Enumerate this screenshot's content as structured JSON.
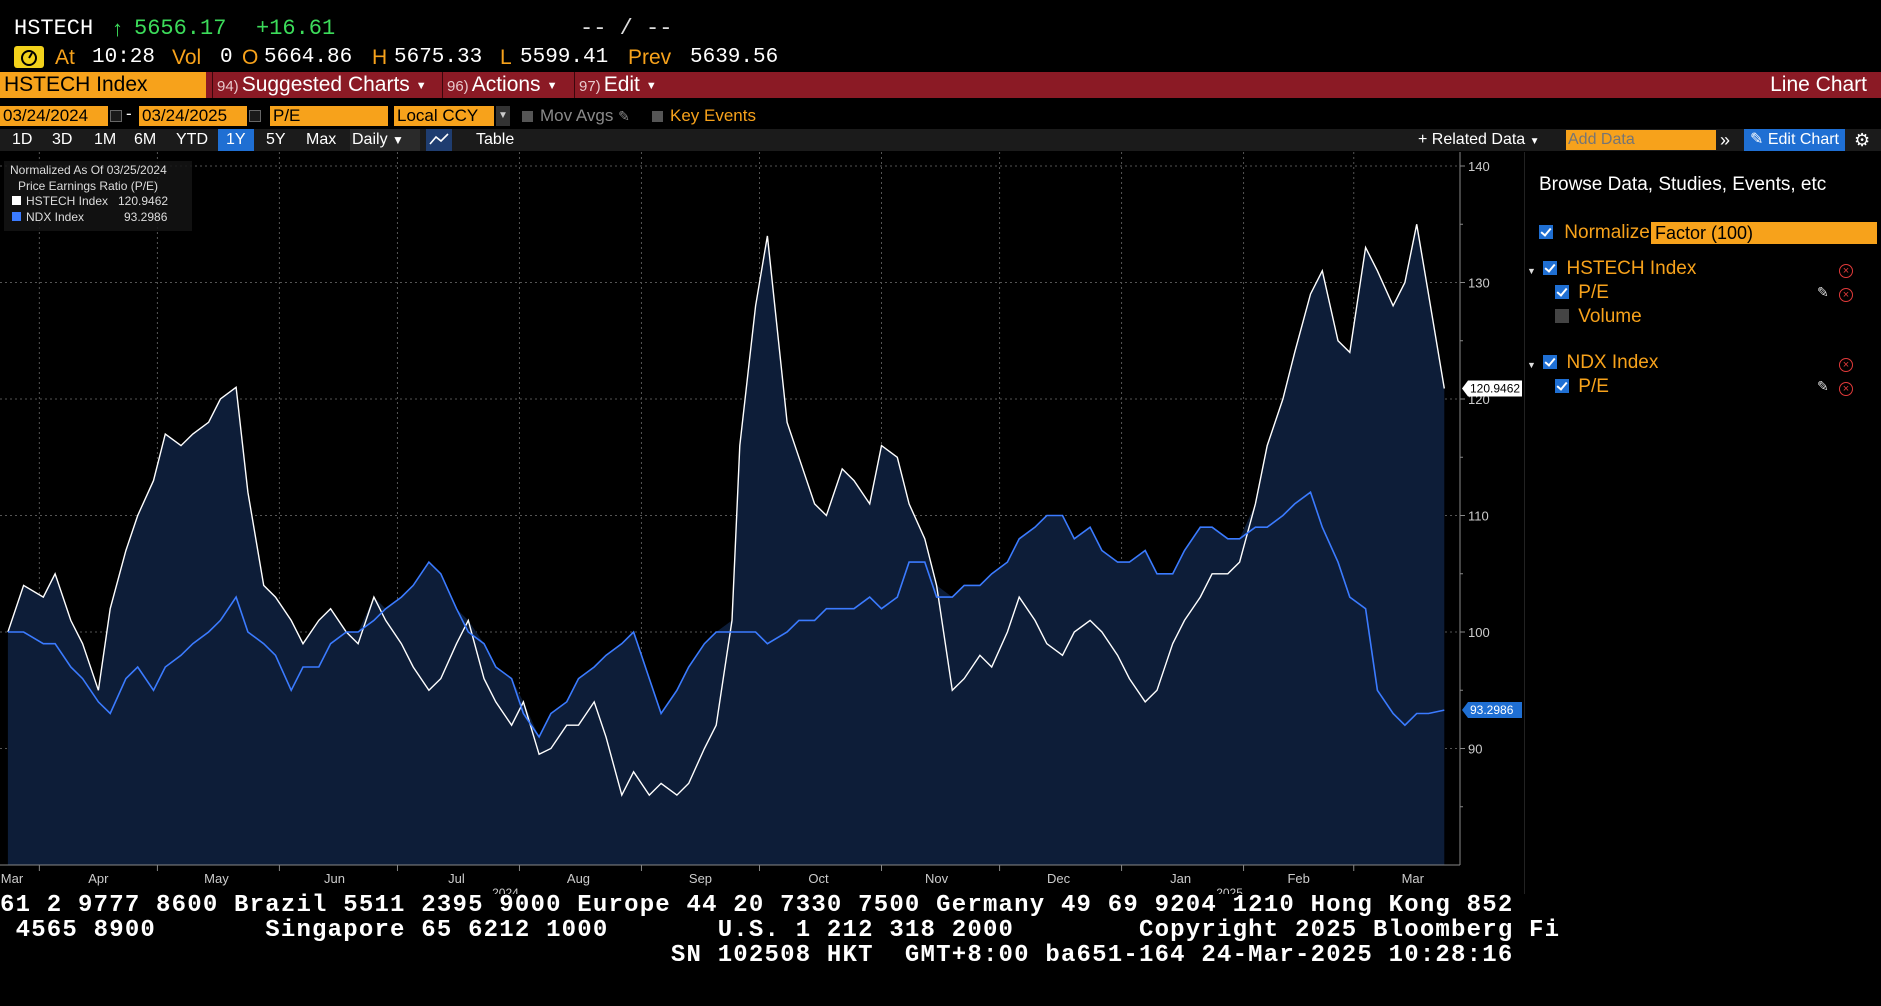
{
  "header": {
    "ticker": "HSTECH",
    "arrow": "↑",
    "last": "5656.17",
    "change": "+16.61",
    "bidask": "-- / --",
    "at_label": "At",
    "time": "10:28",
    "vol_label": "Vol",
    "vol": "0",
    "open_label": "O",
    "open": "5664.86",
    "high_label": "H",
    "high": "5675.33",
    "low_label": "L",
    "low": "5599.41",
    "prev_label": "Prev",
    "prev": "5639.56"
  },
  "menu": {
    "security": "HSTECH Index",
    "items": [
      {
        "num": "94)",
        "label": "Suggested Charts"
      },
      {
        "num": "96)",
        "label": "Actions"
      },
      {
        "num": "97)",
        "label": "Edit"
      }
    ],
    "chart_type": "Line Chart"
  },
  "controls": {
    "start_date": "03/24/2024",
    "date_sep": "-",
    "end_date": "03/24/2025",
    "field": "P/E",
    "currency": "Local CCY",
    "mov_avgs": "Mov Avgs",
    "key_events": "Key Events"
  },
  "toolbar": {
    "periods": [
      "1D",
      "3D",
      "1M",
      "6M",
      "YTD",
      "1Y",
      "5Y",
      "Max"
    ],
    "selected_period": "1Y",
    "frequency": "Daily",
    "table": "Table",
    "related_data": "Related Data",
    "add_data_placeholder": "Add Data",
    "edit_chart": "Edit Chart"
  },
  "legend": {
    "line1": "Normalized As Of 03/25/2024",
    "line2": "Price Earnings Ratio (P/E)",
    "entries": [
      {
        "name": "HSTECH Index",
        "value": "120.9462",
        "color": "#ffffff"
      },
      {
        "name": "NDX Index",
        "value": "93.2986",
        "color": "#3b7bff"
      }
    ]
  },
  "panel": {
    "title": "Browse Data, Studies, Events, etc",
    "normalize_label": "Normalize",
    "normalize_value": "Factor (100)",
    "securities": [
      {
        "name": "HSTECH Index",
        "fields": [
          {
            "label": "P/E",
            "checked": true
          },
          {
            "label": "Volume",
            "checked": false
          }
        ]
      },
      {
        "name": "NDX Index",
        "fields": [
          {
            "label": "P/E",
            "checked": true
          }
        ]
      }
    ]
  },
  "ticker_lines": [
    "61 2 9777 8600 Brazil 5511 2395 9000 Europe 44 20 7330 7500 Germany 49 69 9204 1210 Hong Kong 852",
    " 4565 8900       Singapore 65 6212 1000       U.S. 1 212 318 2000        Copyright 2025 Bloomberg Fi",
    "                                           SN 102508 HKT  GMT+8:00 ba651-164 24-Mar-2025 10:28:16"
  ],
  "colors": {
    "accent_orange": "#f7a21b",
    "menu_red": "#8b1a25",
    "hstech_line": "#ffffff",
    "ndx_line": "#3b7bff",
    "area_fill": "#0d1d38",
    "up_green": "#3cdc5a"
  },
  "chart_data": {
    "type": "line",
    "title": "",
    "ylim": [
      80,
      140
    ],
    "y_ticks": [
      90,
      100,
      110,
      120,
      130,
      140
    ],
    "x_months": [
      "Mar",
      "Apr",
      "May",
      "Jun",
      "Jul",
      "Aug",
      "Sep",
      "Oct",
      "Nov",
      "Dec",
      "Jan",
      "Feb",
      "Mar"
    ],
    "x_years": [
      "2024",
      "2025"
    ],
    "grid": true,
    "series": [
      {
        "name": "HSTECH Index",
        "last_label": "120.9462",
        "points": [
          [
            "2024-03-24",
            100.0
          ],
          [
            "2024-03-28",
            104.0
          ],
          [
            "2024-04-02",
            103.0
          ],
          [
            "2024-04-05",
            105.0
          ],
          [
            "2024-04-09",
            101.0
          ],
          [
            "2024-04-12",
            99.0
          ],
          [
            "2024-04-16",
            95.0
          ],
          [
            "2024-04-19",
            102.0
          ],
          [
            "2024-04-23",
            107.0
          ],
          [
            "2024-04-26",
            110.0
          ],
          [
            "2024-04-30",
            113.0
          ],
          [
            "2024-05-03",
            117.0
          ],
          [
            "2024-05-07",
            116.0
          ],
          [
            "2024-05-10",
            117.0
          ],
          [
            "2024-05-14",
            118.0
          ],
          [
            "2024-05-17",
            120.0
          ],
          [
            "2024-05-21",
            121.0
          ],
          [
            "2024-05-24",
            112.0
          ],
          [
            "2024-05-28",
            104.0
          ],
          [
            "2024-05-31",
            103.0
          ],
          [
            "2024-06-04",
            101.0
          ],
          [
            "2024-06-07",
            99.0
          ],
          [
            "2024-06-11",
            101.0
          ],
          [
            "2024-06-14",
            102.0
          ],
          [
            "2024-06-18",
            100.0
          ],
          [
            "2024-06-21",
            99.0
          ],
          [
            "2024-06-25",
            103.0
          ],
          [
            "2024-06-28",
            101.0
          ],
          [
            "2024-07-02",
            99.0
          ],
          [
            "2024-07-05",
            97.0
          ],
          [
            "2024-07-09",
            95.0
          ],
          [
            "2024-07-12",
            96.0
          ],
          [
            "2024-07-16",
            99.0
          ],
          [
            "2024-07-19",
            101.0
          ],
          [
            "2024-07-23",
            96.0
          ],
          [
            "2024-07-26",
            94.0
          ],
          [
            "2024-07-30",
            92.0
          ],
          [
            "2024-08-02",
            94.0
          ],
          [
            "2024-08-06",
            89.5
          ],
          [
            "2024-08-09",
            90.0
          ],
          [
            "2024-08-13",
            92.0
          ],
          [
            "2024-08-16",
            92.0
          ],
          [
            "2024-08-20",
            94.0
          ],
          [
            "2024-08-23",
            91.0
          ],
          [
            "2024-08-27",
            86.0
          ],
          [
            "2024-08-30",
            88.0
          ],
          [
            "2024-09-03",
            86.0
          ],
          [
            "2024-09-06",
            87.0
          ],
          [
            "2024-09-10",
            86.0
          ],
          [
            "2024-09-13",
            87.0
          ],
          [
            "2024-09-17",
            90.0
          ],
          [
            "2024-09-20",
            92.0
          ],
          [
            "2024-09-24",
            101.0
          ],
          [
            "2024-09-26",
            116.0
          ],
          [
            "2024-09-30",
            128.0
          ],
          [
            "2024-10-03",
            134.0
          ],
          [
            "2024-10-08",
            118.0
          ],
          [
            "2024-10-11",
            115.0
          ],
          [
            "2024-10-15",
            111.0
          ],
          [
            "2024-10-18",
            110.0
          ],
          [
            "2024-10-22",
            114.0
          ],
          [
            "2024-10-25",
            113.0
          ],
          [
            "2024-10-29",
            111.0
          ],
          [
            "2024-11-01",
            116.0
          ],
          [
            "2024-11-05",
            115.0
          ],
          [
            "2024-11-08",
            111.0
          ],
          [
            "2024-11-12",
            108.0
          ],
          [
            "2024-11-15",
            104.0
          ],
          [
            "2024-11-19",
            95.0
          ],
          [
            "2024-11-22",
            96.0
          ],
          [
            "2024-11-26",
            98.0
          ],
          [
            "2024-11-29",
            97.0
          ],
          [
            "2024-12-03",
            100.0
          ],
          [
            "2024-12-06",
            103.0
          ],
          [
            "2024-12-10",
            101.0
          ],
          [
            "2024-12-13",
            99.0
          ],
          [
            "2024-12-17",
            98.0
          ],
          [
            "2024-12-20",
            100.0
          ],
          [
            "2024-12-24",
            101.0
          ],
          [
            "2024-12-27",
            100.0
          ],
          [
            "2024-12-31",
            98.0
          ],
          [
            "2025-01-03",
            96.0
          ],
          [
            "2025-01-07",
            94.0
          ],
          [
            "2025-01-10",
            95.0
          ],
          [
            "2025-01-14",
            99.0
          ],
          [
            "2025-01-17",
            101.0
          ],
          [
            "2025-01-21",
            103.0
          ],
          [
            "2025-01-24",
            105.0
          ],
          [
            "2025-01-28",
            105.0
          ],
          [
            "2025-01-31",
            106.0
          ],
          [
            "2025-02-04",
            111.0
          ],
          [
            "2025-02-07",
            116.0
          ],
          [
            "2025-02-11",
            120.0
          ],
          [
            "2025-02-14",
            124.0
          ],
          [
            "2025-02-18",
            129.0
          ],
          [
            "2025-02-21",
            131.0
          ],
          [
            "2025-02-25",
            125.0
          ],
          [
            "2025-02-28",
            124.0
          ],
          [
            "2025-03-04",
            133.0
          ],
          [
            "2025-03-07",
            131.0
          ],
          [
            "2025-03-11",
            128.0
          ],
          [
            "2025-03-14",
            130.0
          ],
          [
            "2025-03-17",
            135.0
          ],
          [
            "2025-03-20",
            129.0
          ],
          [
            "2025-03-24",
            120.9
          ]
        ]
      },
      {
        "name": "NDX Index",
        "last_label": "93.2986",
        "points": [
          [
            "2024-03-24",
            100.0
          ],
          [
            "2024-03-28",
            100.0
          ],
          [
            "2024-04-02",
            99.0
          ],
          [
            "2024-04-05",
            99.0
          ],
          [
            "2024-04-09",
            97.0
          ],
          [
            "2024-04-12",
            96.0
          ],
          [
            "2024-04-16",
            94.0
          ],
          [
            "2024-04-19",
            93.0
          ],
          [
            "2024-04-23",
            96.0
          ],
          [
            "2024-04-26",
            97.0
          ],
          [
            "2024-04-30",
            95.0
          ],
          [
            "2024-05-03",
            97.0
          ],
          [
            "2024-05-07",
            98.0
          ],
          [
            "2024-05-10",
            99.0
          ],
          [
            "2024-05-14",
            100.0
          ],
          [
            "2024-05-17",
            101.0
          ],
          [
            "2024-05-21",
            103.0
          ],
          [
            "2024-05-24",
            100.0
          ],
          [
            "2024-05-28",
            99.0
          ],
          [
            "2024-05-31",
            98.0
          ],
          [
            "2024-06-04",
            95.0
          ],
          [
            "2024-06-07",
            97.0
          ],
          [
            "2024-06-11",
            97.0
          ],
          [
            "2024-06-14",
            99.0
          ],
          [
            "2024-06-18",
            100.0
          ],
          [
            "2024-06-21",
            100.0
          ],
          [
            "2024-06-25",
            101.0
          ],
          [
            "2024-06-28",
            102.0
          ],
          [
            "2024-07-02",
            103.0
          ],
          [
            "2024-07-05",
            104.0
          ],
          [
            "2024-07-09",
            106.0
          ],
          [
            "2024-07-12",
            105.0
          ],
          [
            "2024-07-16",
            102.0
          ],
          [
            "2024-07-19",
            100.0
          ],
          [
            "2024-07-23",
            99.0
          ],
          [
            "2024-07-26",
            97.0
          ],
          [
            "2024-07-30",
            96.0
          ],
          [
            "2024-08-02",
            93.0
          ],
          [
            "2024-08-06",
            91.0
          ],
          [
            "2024-08-09",
            93.0
          ],
          [
            "2024-08-13",
            94.0
          ],
          [
            "2024-08-16",
            96.0
          ],
          [
            "2024-08-20",
            97.0
          ],
          [
            "2024-08-23",
            98.0
          ],
          [
            "2024-08-27",
            99.0
          ],
          [
            "2024-08-30",
            100.0
          ],
          [
            "2024-09-03",
            96.0
          ],
          [
            "2024-09-06",
            93.0
          ],
          [
            "2024-09-10",
            95.0
          ],
          [
            "2024-09-13",
            97.0
          ],
          [
            "2024-09-17",
            99.0
          ],
          [
            "2024-09-20",
            100.0
          ],
          [
            "2024-09-24",
            100.0
          ],
          [
            "2024-09-26",
            100.0
          ],
          [
            "2024-09-30",
            100.0
          ],
          [
            "2024-10-03",
            99.0
          ],
          [
            "2024-10-08",
            100.0
          ],
          [
            "2024-10-11",
            101.0
          ],
          [
            "2024-10-15",
            101.0
          ],
          [
            "2024-10-18",
            102.0
          ],
          [
            "2024-10-22",
            102.0
          ],
          [
            "2024-10-25",
            102.0
          ],
          [
            "2024-10-29",
            103.0
          ],
          [
            "2024-11-01",
            102.0
          ],
          [
            "2024-11-05",
            103.0
          ],
          [
            "2024-11-08",
            106.0
          ],
          [
            "2024-11-12",
            106.0
          ],
          [
            "2024-11-15",
            103.0
          ],
          [
            "2024-11-19",
            103.0
          ],
          [
            "2024-11-22",
            104.0
          ],
          [
            "2024-11-26",
            104.0
          ],
          [
            "2024-11-29",
            105.0
          ],
          [
            "2024-12-03",
            106.0
          ],
          [
            "2024-12-06",
            108.0
          ],
          [
            "2024-12-10",
            109.0
          ],
          [
            "2024-12-13",
            110.0
          ],
          [
            "2024-12-17",
            110.0
          ],
          [
            "2024-12-20",
            108.0
          ],
          [
            "2024-12-24",
            109.0
          ],
          [
            "2024-12-27",
            107.0
          ],
          [
            "2024-12-31",
            106.0
          ],
          [
            "2025-01-03",
            106.0
          ],
          [
            "2025-01-07",
            107.0
          ],
          [
            "2025-01-10",
            105.0
          ],
          [
            "2025-01-14",
            105.0
          ],
          [
            "2025-01-17",
            107.0
          ],
          [
            "2025-01-21",
            109.0
          ],
          [
            "2025-01-24",
            109.0
          ],
          [
            "2025-01-28",
            108.0
          ],
          [
            "2025-01-31",
            108.0
          ],
          [
            "2025-02-04",
            109.0
          ],
          [
            "2025-02-07",
            109.0
          ],
          [
            "2025-02-11",
            110.0
          ],
          [
            "2025-02-14",
            111.0
          ],
          [
            "2025-02-18",
            112.0
          ],
          [
            "2025-02-21",
            109.0
          ],
          [
            "2025-02-25",
            106.0
          ],
          [
            "2025-02-28",
            103.0
          ],
          [
            "2025-03-04",
            102.0
          ],
          [
            "2025-03-07",
            95.0
          ],
          [
            "2025-03-11",
            93.0
          ],
          [
            "2025-03-14",
            92.0
          ],
          [
            "2025-03-17",
            93.0
          ],
          [
            "2025-03-20",
            93.0
          ],
          [
            "2025-03-24",
            93.3
          ]
        ]
      }
    ]
  }
}
